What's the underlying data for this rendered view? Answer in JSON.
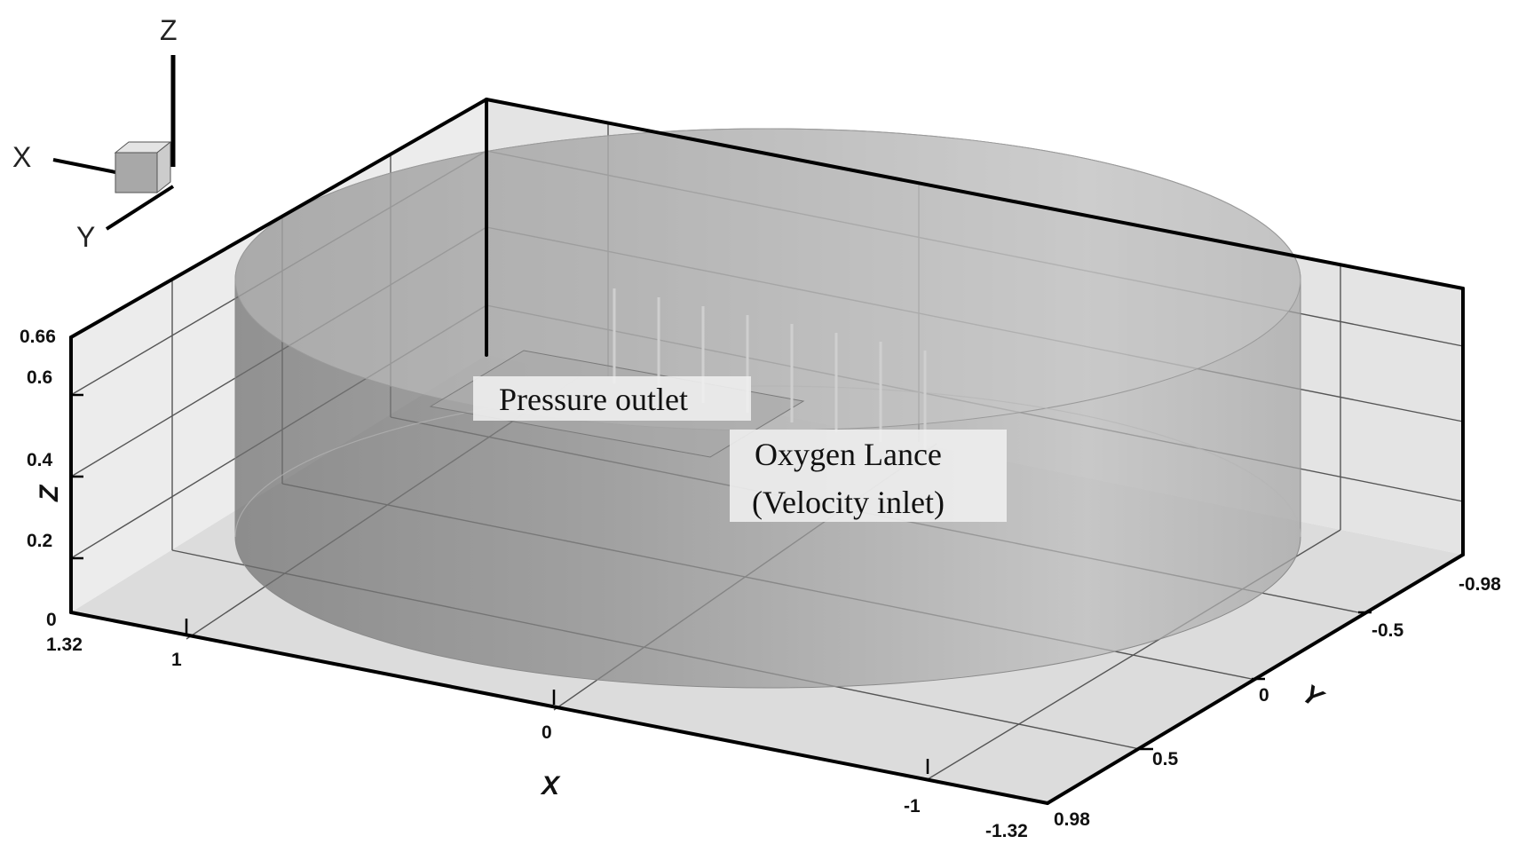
{
  "triad": {
    "x_label": "X",
    "y_label": "Y",
    "z_label": "Z"
  },
  "axes": {
    "x": {
      "title": "X",
      "ticks": [
        "1.32",
        "1",
        "0",
        "-1",
        "-1.32"
      ]
    },
    "y": {
      "title": "Y",
      "ticks": [
        "-0.98",
        "-0.5",
        "0",
        "0.5",
        "0.98"
      ]
    },
    "z": {
      "title": "Z",
      "ticks": [
        "0.66",
        "0.6",
        "0.4",
        "0.2",
        "0"
      ]
    }
  },
  "annotations": {
    "pressure_outlet": "Pressure outlet",
    "oxygen_lance_line1": "Oxygen Lance",
    "oxygen_lance_line2": "(Velocity inlet)"
  },
  "colors": {
    "box_edge": "#000000",
    "grid_line": "#555555",
    "cylinder_fill": "#9a9a9a",
    "background": "#ffffff"
  }
}
